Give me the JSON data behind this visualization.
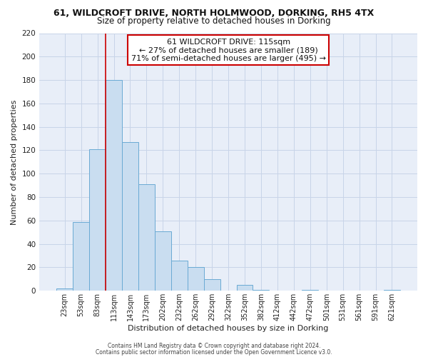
{
  "title_line1": "61, WILDCROFT DRIVE, NORTH HOLMWOOD, DORKING, RH5 4TX",
  "title_line2": "Size of property relative to detached houses in Dorking",
  "xlabel": "Distribution of detached houses by size in Dorking",
  "ylabel": "Number of detached properties",
  "bar_labels": [
    "23sqm",
    "53sqm",
    "83sqm",
    "113sqm",
    "143sqm",
    "173sqm",
    "202sqm",
    "232sqm",
    "262sqm",
    "292sqm",
    "322sqm",
    "352sqm",
    "382sqm",
    "412sqm",
    "442sqm",
    "472sqm",
    "501sqm",
    "531sqm",
    "561sqm",
    "591sqm",
    "621sqm"
  ],
  "bar_values": [
    2,
    59,
    121,
    180,
    127,
    91,
    51,
    26,
    20,
    10,
    0,
    5,
    1,
    0,
    0,
    1,
    0,
    0,
    0,
    0,
    1
  ],
  "bar_color": "#c9ddf0",
  "bar_edge_color": "#6aaad4",
  "grid_color": "#c8d4e8",
  "background_color": "#e8eef8",
  "vline_color": "#cc0000",
  "ylim": [
    0,
    220
  ],
  "yticks": [
    0,
    20,
    40,
    60,
    80,
    100,
    120,
    140,
    160,
    180,
    200,
    220
  ],
  "annotation_title": "61 WILDCROFT DRIVE: 115sqm",
  "annotation_line1": "← 27% of detached houses are smaller (189)",
  "annotation_line2": "71% of semi-detached houses are larger (495) →",
  "footer1": "Contains HM Land Registry data © Crown copyright and database right 2024.",
  "footer2": "Contains public sector information licensed under the Open Government Licence v3.0.",
  "title1_fontsize": 9,
  "title2_fontsize": 8.5,
  "vline_bar_index": 3
}
